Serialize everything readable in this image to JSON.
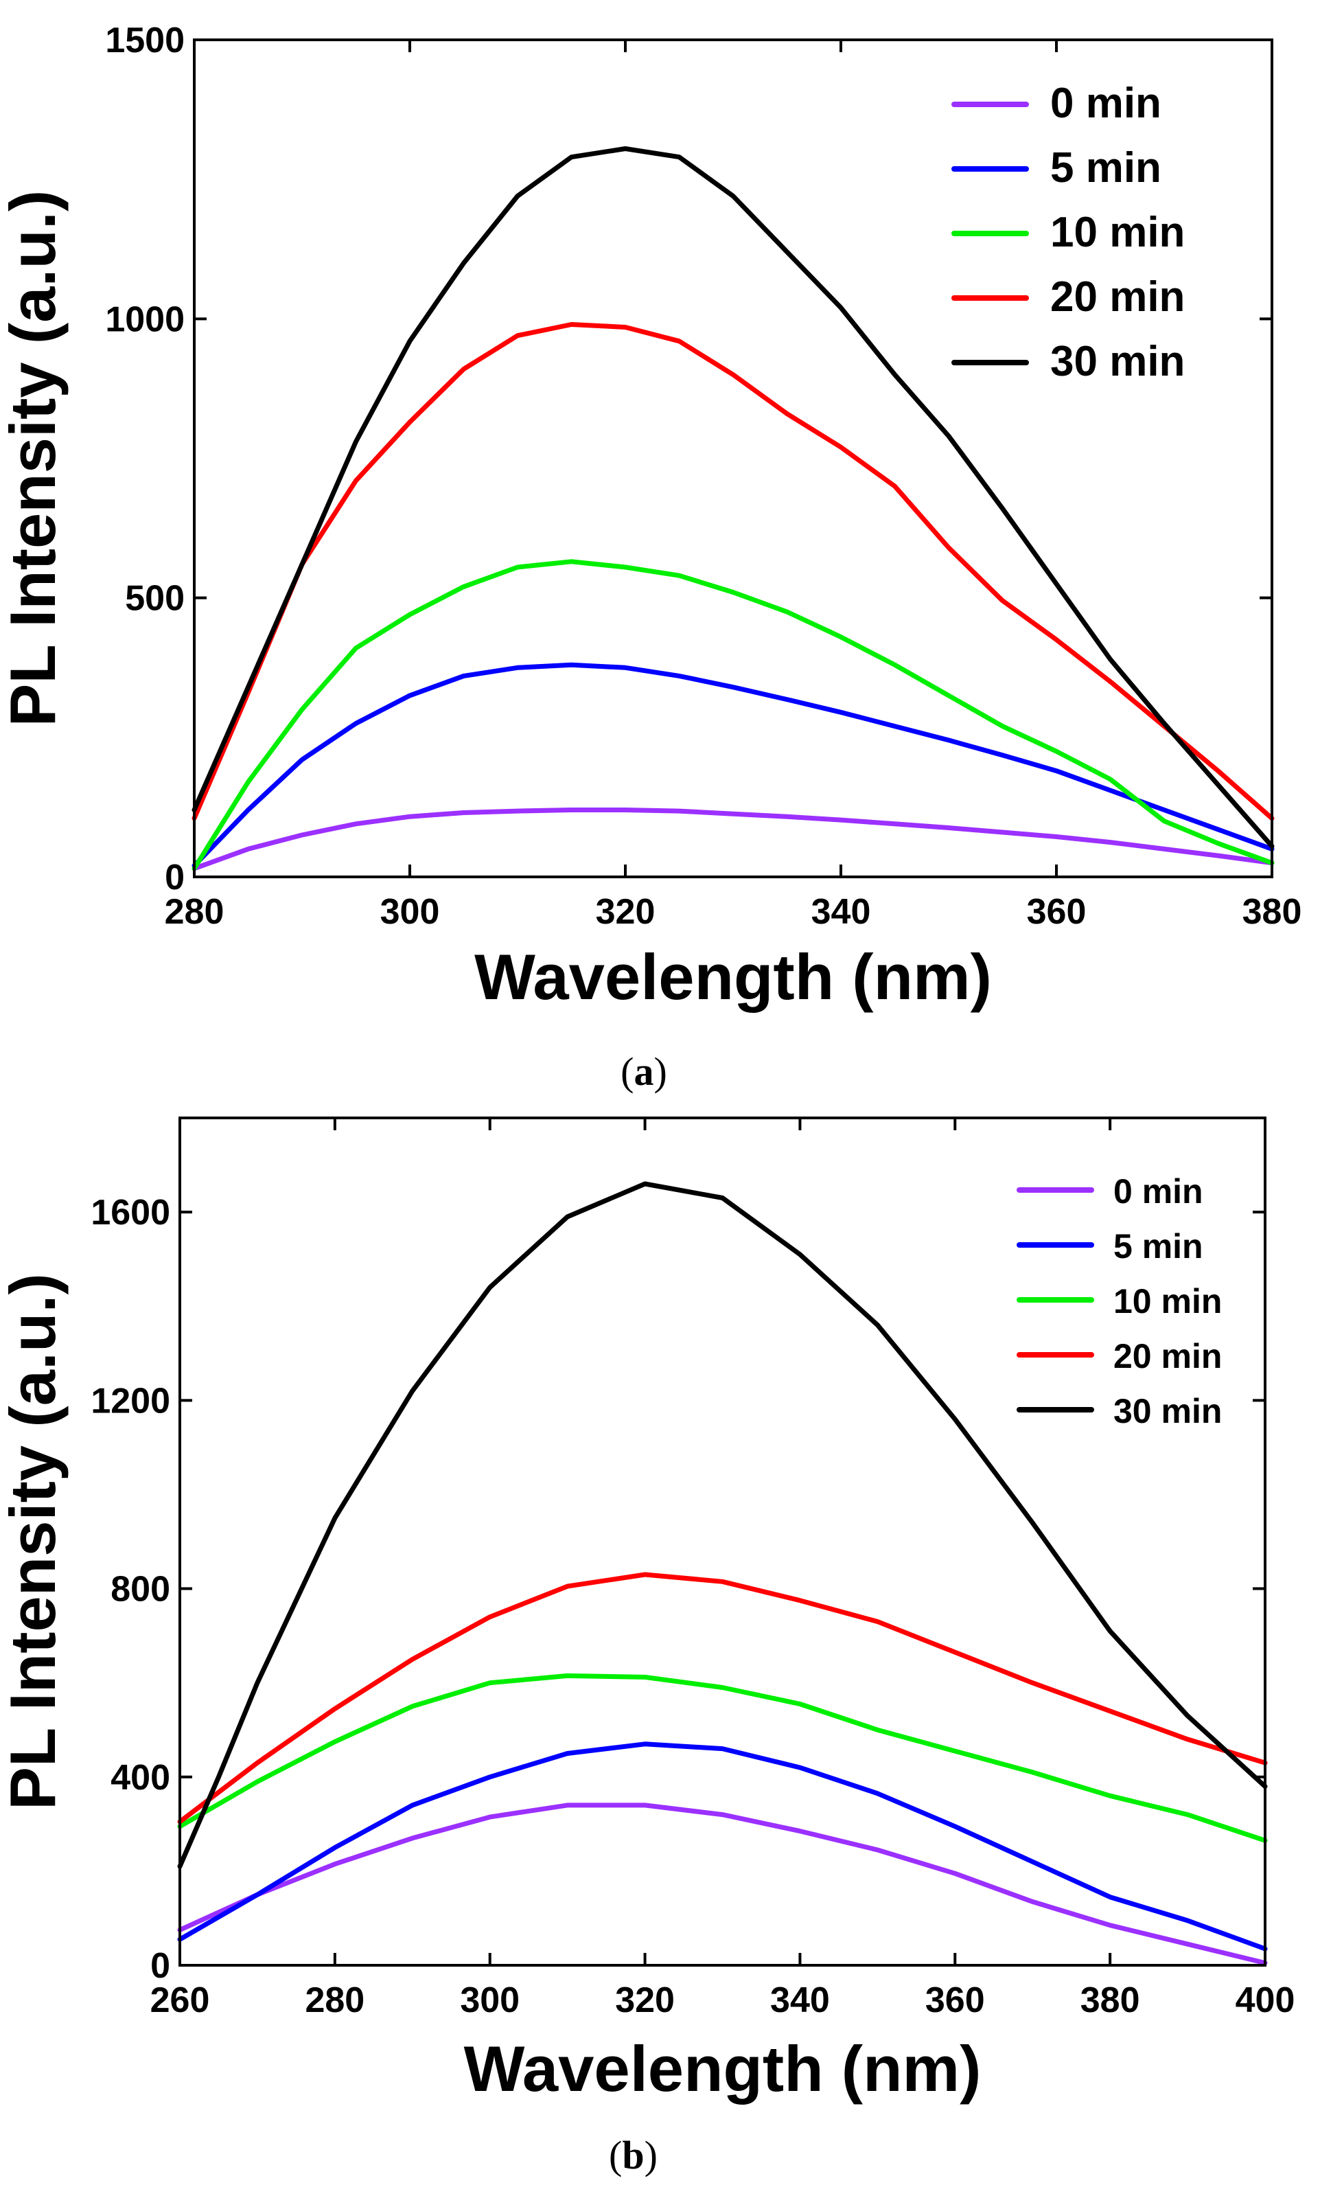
{
  "chart_data": [
    {
      "type": "line",
      "panel": "a",
      "caption_open": "(",
      "caption_letter": "a",
      "caption_close": ")",
      "xlabel": "Wavelength (nm)",
      "ylabel": "PL Intensity (a.u.)",
      "xlim": [
        280,
        380
      ],
      "ylim": [
        0,
        1500
      ],
      "xticks": [
        280,
        300,
        320,
        340,
        360,
        380
      ],
      "yticks": [
        0,
        500,
        1000,
        1500
      ],
      "legend_position": "top-right",
      "series": [
        {
          "name": "0 min",
          "color": "#9b30ff",
          "x": [
            280,
            285,
            290,
            295,
            300,
            305,
            310,
            315,
            320,
            325,
            330,
            335,
            340,
            345,
            350,
            355,
            360,
            365,
            370,
            375,
            380
          ],
          "y": [
            15,
            50,
            75,
            95,
            108,
            115,
            118,
            120,
            120,
            118,
            113,
            108,
            102,
            95,
            88,
            80,
            72,
            62,
            50,
            38,
            25
          ]
        },
        {
          "name": "5 min",
          "color": "#0000ff",
          "x": [
            280,
            285,
            290,
            295,
            300,
            305,
            310,
            315,
            320,
            325,
            330,
            335,
            340,
            345,
            350,
            355,
            360,
            365,
            370,
            375,
            380
          ],
          "y": [
            20,
            120,
            210,
            275,
            325,
            360,
            375,
            380,
            375,
            360,
            340,
            318,
            295,
            270,
            245,
            218,
            190,
            155,
            120,
            85,
            50
          ]
        },
        {
          "name": "10 min",
          "color": "#00ee00",
          "x": [
            280,
            285,
            290,
            295,
            300,
            305,
            310,
            315,
            320,
            325,
            330,
            335,
            340,
            345,
            350,
            355,
            360,
            365,
            370,
            375,
            380
          ],
          "y": [
            15,
            170,
            300,
            410,
            470,
            520,
            555,
            565,
            555,
            540,
            510,
            475,
            430,
            380,
            325,
            270,
            225,
            175,
            100,
            60,
            25
          ]
        },
        {
          "name": "20 min",
          "color": "#ff0000",
          "x": [
            280,
            285,
            290,
            295,
            300,
            305,
            310,
            315,
            320,
            325,
            330,
            335,
            340,
            345,
            350,
            355,
            360,
            365,
            370,
            375,
            380
          ],
          "y": [
            105,
            330,
            560,
            710,
            815,
            910,
            970,
            990,
            985,
            960,
            900,
            830,
            770,
            700,
            590,
            495,
            425,
            350,
            270,
            190,
            105
          ]
        },
        {
          "name": "30 min",
          "color": "#000000",
          "x": [
            280,
            285,
            290,
            295,
            300,
            305,
            310,
            315,
            320,
            325,
            330,
            335,
            340,
            345,
            350,
            355,
            360,
            365,
            370,
            375,
            380
          ],
          "y": [
            120,
            340,
            560,
            780,
            960,
            1100,
            1220,
            1290,
            1305,
            1290,
            1220,
            1120,
            1020,
            900,
            790,
            660,
            525,
            390,
            275,
            165,
            55
          ]
        }
      ]
    },
    {
      "type": "line",
      "panel": "b",
      "caption_open": "(",
      "caption_letter": "b",
      "caption_close": ")",
      "xlabel": "Wavelength (nm)",
      "ylabel": "PL Intensity (a.u.)",
      "xlim": [
        260,
        400
      ],
      "ylim": [
        0,
        1800
      ],
      "xticks": [
        260,
        280,
        300,
        320,
        340,
        360,
        380,
        400
      ],
      "yticks": [
        0,
        400,
        800,
        1200,
        1600
      ],
      "legend_position": "top-right",
      "series": [
        {
          "name": "0 min",
          "color": "#9b30ff",
          "x": [
            260,
            270,
            280,
            290,
            300,
            310,
            320,
            330,
            340,
            350,
            360,
            370,
            380,
            390,
            400
          ],
          "y": [
            75,
            150,
            215,
            270,
            315,
            340,
            340,
            320,
            285,
            245,
            195,
            135,
            85,
            45,
            5
          ]
        },
        {
          "name": "5 min",
          "color": "#0000ff",
          "x": [
            260,
            270,
            280,
            290,
            300,
            310,
            320,
            330,
            340,
            350,
            360,
            370,
            380,
            390,
            400
          ],
          "y": [
            55,
            150,
            250,
            340,
            400,
            450,
            470,
            460,
            420,
            365,
            295,
            220,
            145,
            95,
            35
          ]
        },
        {
          "name": "10 min",
          "color": "#00ee00",
          "x": [
            260,
            270,
            280,
            290,
            300,
            310,
            320,
            330,
            340,
            350,
            360,
            370,
            380,
            390,
            400
          ],
          "y": [
            295,
            390,
            475,
            550,
            600,
            615,
            612,
            590,
            555,
            500,
            455,
            410,
            360,
            320,
            265
          ]
        },
        {
          "name": "20 min",
          "color": "#ff0000",
          "x": [
            260,
            270,
            280,
            290,
            300,
            310,
            320,
            330,
            340,
            350,
            360,
            370,
            380,
            390,
            400
          ],
          "y": [
            305,
            430,
            545,
            650,
            740,
            805,
            830,
            815,
            775,
            730,
            665,
            600,
            540,
            480,
            430
          ]
        },
        {
          "name": "30 min",
          "color": "#000000",
          "x": [
            260,
            265,
            270,
            280,
            290,
            300,
            310,
            320,
            330,
            340,
            350,
            360,
            370,
            380,
            390,
            400
          ],
          "y": [
            210,
            400,
            600,
            950,
            1220,
            1440,
            1590,
            1660,
            1630,
            1510,
            1360,
            1160,
            940,
            710,
            530,
            380
          ]
        }
      ]
    }
  ]
}
